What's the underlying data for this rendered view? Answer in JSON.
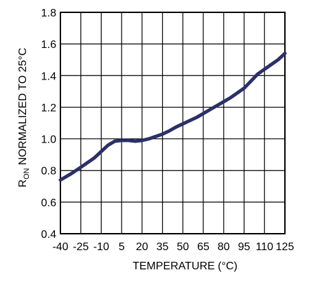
{
  "chart_data": {
    "type": "line",
    "title": "",
    "xlabel": "TEMPERATURE (°C)",
    "ylabel_main": "R",
    "ylabel_sub": "ON",
    "ylabel_rest": " NORMALIZED TO 25°C",
    "x_ticks": [
      -40,
      -25,
      -10,
      5,
      20,
      35,
      50,
      65,
      80,
      95,
      110,
      125
    ],
    "x_tick_labels": [
      "-40",
      "-25",
      "-10",
      "5",
      "20",
      "35",
      "50",
      "65",
      "80",
      "95",
      "110",
      "125"
    ],
    "y_ticks": [
      0.4,
      0.6,
      0.8,
      1.0,
      1.2,
      1.4,
      1.6,
      1.8
    ],
    "y_tick_labels": [
      "0.4",
      "0.6",
      "0.8",
      "1.0",
      "1.2",
      "1.4",
      "1.6",
      "1.8"
    ],
    "xlim": [
      -40,
      125
    ],
    "ylim": [
      0.4,
      1.8
    ],
    "grid": true,
    "line_color": "#2b3068",
    "series": [
      {
        "x": [
          -40,
          -32,
          -25,
          -20,
          -15,
          -10,
          -5,
          0,
          5,
          10,
          15,
          20,
          25,
          30,
          35,
          40,
          45,
          50,
          55,
          60,
          65,
          70,
          75,
          80,
          85,
          90,
          95,
          100,
          105,
          110,
          115,
          120,
          125
        ],
        "y": [
          0.74,
          0.78,
          0.82,
          0.85,
          0.88,
          0.92,
          0.96,
          0.985,
          0.99,
          0.99,
          0.985,
          0.99,
          1.0,
          1.015,
          1.03,
          1.05,
          1.075,
          1.095,
          1.115,
          1.135,
          1.16,
          1.185,
          1.21,
          1.235,
          1.26,
          1.29,
          1.32,
          1.365,
          1.41,
          1.44,
          1.47,
          1.5,
          1.54
        ]
      }
    ]
  }
}
